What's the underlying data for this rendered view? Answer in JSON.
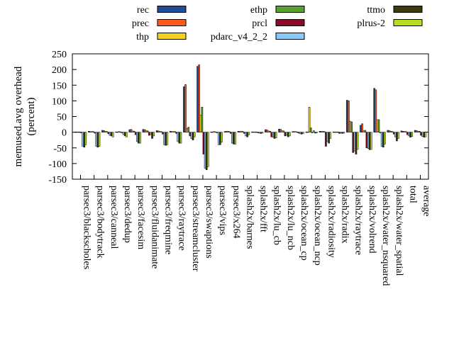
{
  "chart_data": {
    "type": "bar",
    "title": "",
    "xlabel": "",
    "ylabel_lines": [
      "memused.avg overhead",
      "(percent)"
    ],
    "ylim": [
      -150,
      250
    ],
    "yticks": [
      -150,
      -100,
      -50,
      0,
      50,
      100,
      150,
      200,
      250
    ],
    "legend_position": "top",
    "categories": [
      "parsec3/blackscholes",
      "parsec3/bodytrack",
      "parsec3/canneal",
      "parsec3/dedup",
      "parsec3/facesim",
      "parsec3/fluidanimate",
      "parsec3/freqmine",
      "parsec3/raytrace",
      "parsec3/streamcluster",
      "parsec3/swaptions",
      "parsec3/vips",
      "parsec3/x264",
      "splash2x/barnes",
      "splash2x/fft",
      "splash2x/lu_cb",
      "splash2x/lu_ncb",
      "splash2x/ocean_cp",
      "splash2x/ocean_ncp",
      "splash2x/radiosity",
      "splash2x/radix",
      "splash2x/raytrace",
      "splash2x/volrend",
      "splash2x/water_nsquared",
      "splash2x/water_spatial",
      "total",
      "average"
    ],
    "series": [
      {
        "name": "rec",
        "color": "#1f4e99",
        "values": [
          1,
          3,
          6,
          1,
          8,
          9,
          5,
          3,
          145,
          210,
          1,
          2,
          3,
          1,
          8,
          10,
          2,
          1,
          3,
          1,
          102,
          22,
          140,
          6,
          4,
          6
        ]
      },
      {
        "name": "prec",
        "color": "#ff5a20",
        "values": [
          1,
          2,
          5,
          1,
          9,
          8,
          4,
          2,
          152,
          215,
          1,
          3,
          2,
          1,
          7,
          9,
          2,
          1,
          2,
          1,
          100,
          27,
          135,
          5,
          3,
          5
        ]
      },
      {
        "name": "thp",
        "color": "#f5d020",
        "values": [
          1,
          2,
          3,
          2,
          4,
          5,
          2,
          2,
          12,
          55,
          2,
          3,
          3,
          1,
          4,
          5,
          2,
          80,
          3,
          1,
          35,
          5,
          40,
          3,
          2,
          3
        ]
      },
      {
        "name": "ethp",
        "color": "#5aa02c",
        "values": [
          1,
          2,
          2,
          1,
          3,
          4,
          2,
          2,
          16,
          80,
          1,
          2,
          2,
          1,
          3,
          4,
          1,
          14,
          2,
          1,
          33,
          6,
          40,
          2,
          2,
          3
        ]
      },
      {
        "name": "prcl",
        "color": "#8b0a28",
        "values": [
          -2,
          -3,
          -5,
          -2,
          -8,
          -10,
          -6,
          -4,
          -12,
          -70,
          -2,
          -4,
          -4,
          -2,
          -15,
          -12,
          -3,
          -2,
          -45,
          -4,
          -65,
          -50,
          -2,
          -6,
          -8,
          -10
        ]
      },
      {
        "name": "pdarc_v4_2_2",
        "color": "#8ac8f5",
        "values": [
          -45,
          -45,
          -10,
          -8,
          -30,
          -8,
          -40,
          -30,
          -20,
          -115,
          -40,
          -35,
          -12,
          -3,
          -16,
          -10,
          -5,
          5,
          -30,
          -3,
          -60,
          -52,
          -45,
          -15,
          -12,
          -14
        ]
      },
      {
        "name": "ttmo",
        "color": "#3a3a10",
        "values": [
          -48,
          -48,
          -12,
          -12,
          -35,
          -20,
          -42,
          -35,
          -25,
          -120,
          -40,
          -38,
          -15,
          -4,
          -20,
          -15,
          -6,
          -3,
          -35,
          -4,
          -70,
          -56,
          -48,
          -28,
          -16,
          -16
        ]
      },
      {
        "name": "plrus-2",
        "color": "#b8e020",
        "values": [
          -40,
          -45,
          -15,
          -15,
          -35,
          -12,
          -40,
          -35,
          -15,
          -110,
          -32,
          -38,
          -8,
          -3,
          -18,
          -12,
          -4,
          -2,
          -20,
          -3,
          -55,
          -55,
          -38,
          -20,
          -14,
          -15
        ]
      }
    ]
  }
}
